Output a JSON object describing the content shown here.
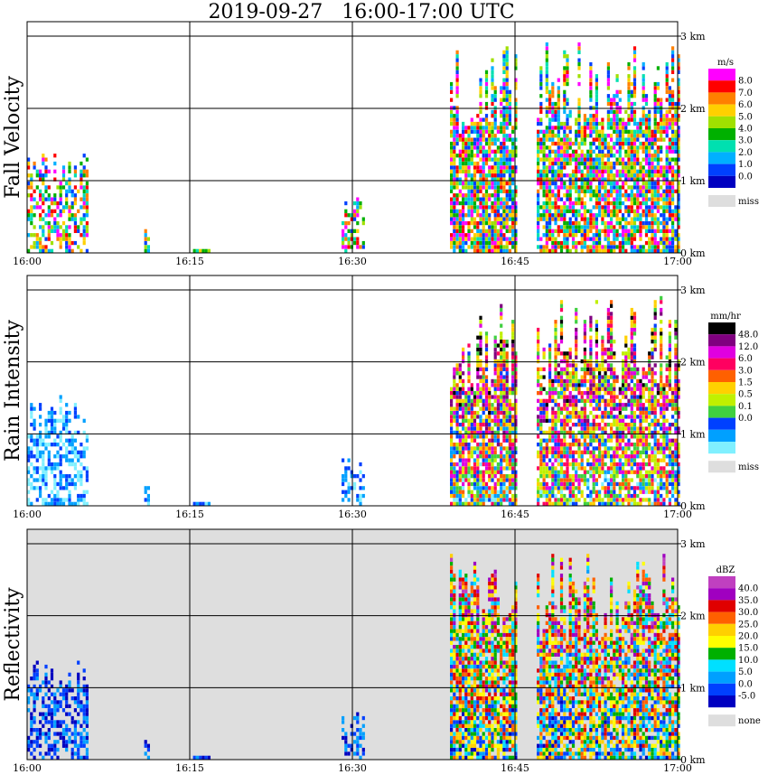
{
  "title": "2019-09-27   16:00-17:00 UTC",
  "chart_data": [
    {
      "type": "heatmap",
      "ylabel": "Fall Velocity",
      "x_ticks": [
        "16:00",
        "16:15",
        "16:30",
        "16:45",
        "17:00"
      ],
      "y_ticks": [
        "0 km",
        "1 km",
        "2 km",
        "3 km"
      ],
      "colorbar": {
        "unit": "m/s",
        "labels": [
          "8.0",
          "7.0",
          "6.0",
          "5.0",
          "4.0",
          "3.0",
          "2.0",
          "1.0",
          "0.0"
        ],
        "missing_label": "miss",
        "colors": [
          "#ff00ff",
          "#ff0000",
          "#ff8000",
          "#ffd000",
          "#a0e000",
          "#00b000",
          "#00e0b0",
          "#00b0ff",
          "#0040ff",
          "#0000c0"
        ]
      }
    },
    {
      "type": "heatmap",
      "ylabel": "Rain Intensity",
      "x_ticks": [
        "16:00",
        "16:15",
        "16:30",
        "16:45",
        "17:00"
      ],
      "y_ticks": [
        "0 km",
        "1 km",
        "2 km",
        "3 km"
      ],
      "colorbar": {
        "unit": "mm/hr",
        "labels": [
          "48.0",
          "12.0",
          "6.0",
          "3.0",
          "1.5",
          "0.5",
          "0.1",
          "0.0"
        ],
        "missing_label": "miss",
        "colors": [
          "#000000",
          "#800080",
          "#e000e0",
          "#ff0060",
          "#ff6000",
          "#ffd000",
          "#c0f000",
          "#40d040",
          "#0040ff",
          "#00a0ff",
          "#80f0ff"
        ]
      }
    },
    {
      "type": "heatmap",
      "ylabel": "Reflectivity",
      "x_ticks": [
        "16:00",
        "16:15",
        "16:30",
        "16:45",
        "17:00"
      ],
      "y_ticks": [
        "0 km",
        "1 km",
        "2 km",
        "3 km"
      ],
      "colorbar": {
        "unit": "dBZ",
        "labels": [
          "40.0",
          "35.0",
          "30.0",
          "25.0",
          "20.0",
          "15.0",
          "10.0",
          "5.0",
          "0.0",
          "-5.0"
        ],
        "missing_label": "none",
        "colors": [
          "#c040c0",
          "#a000c0",
          "#e00000",
          "#ff6000",
          "#ffd000",
          "#ffff00",
          "#00b000",
          "#00e0ff",
          "#00a0ff",
          "#0040ff",
          "#0000c0"
        ]
      }
    }
  ]
}
